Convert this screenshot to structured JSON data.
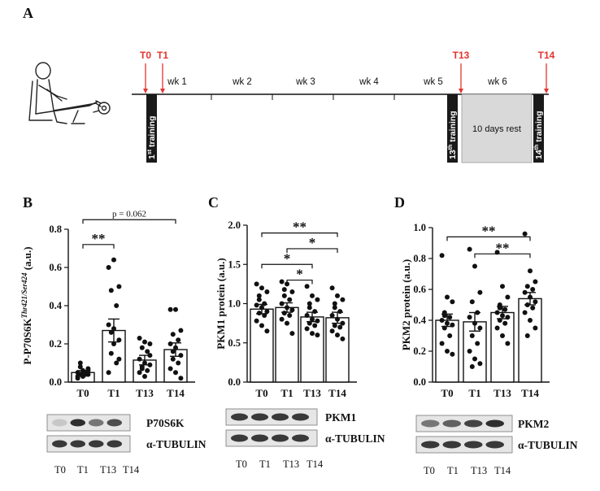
{
  "panel_labels": {
    "a": "A",
    "b": "B",
    "c": "C",
    "d": "D"
  },
  "timeline": {
    "markers": [
      {
        "label": "T0",
        "pos": 0
      },
      {
        "label": "T1",
        "pos": 1
      },
      {
        "label": "T13",
        "pos": 2
      },
      {
        "label": "T14",
        "pos": 3
      }
    ],
    "weeks": [
      "wk 1",
      "wk 2",
      "wk 3",
      "wk 4",
      "wk 5",
      "wk 6"
    ],
    "training_labels": [
      {
        "num": "1",
        "sup": "st",
        "word": " training"
      },
      {
        "num": "13",
        "sup": "th",
        "word": " training"
      },
      {
        "num": "14",
        "sup": "th",
        "word": " training"
      }
    ],
    "rest_label": "10 days rest",
    "colors": {
      "marker": "#e3342f",
      "rest_fill": "#d9d9d9",
      "training_fill": "#1a1a1a"
    }
  },
  "chart_data": [
    {
      "type": "bar",
      "panel": "B",
      "categories": [
        "T0",
        "T1",
        "T13",
        "T14"
      ],
      "values": [
        0.05,
        0.27,
        0.115,
        0.17
      ],
      "errors": [
        0.01,
        0.06,
        0.025,
        0.035
      ],
      "points": [
        [
          0.02,
          0.03,
          0.04,
          0.04,
          0.05,
          0.05,
          0.06,
          0.07,
          0.1,
          0.04,
          0.03,
          0.05,
          0.06,
          0.08
        ],
        [
          0.6,
          0.64,
          0.5,
          0.48,
          0.4,
          0.3,
          0.28,
          0.22,
          0.15,
          0.1,
          0.05,
          0.2,
          0.12,
          0.26
        ],
        [
          0.23,
          0.21,
          0.2,
          0.18,
          0.16,
          0.12,
          0.1,
          0.09,
          0.08,
          0.06,
          0.05,
          0.03,
          0.14,
          0.07
        ],
        [
          0.38,
          0.38,
          0.27,
          0.25,
          0.22,
          0.2,
          0.18,
          0.14,
          0.12,
          0.1,
          0.07,
          0.05,
          0.02,
          0.16
        ]
      ],
      "ylabel_main": "P-P70S6K",
      "ylabel_sup": "Thr421/Ser424",
      "ylabel_unit": " (a.u.)",
      "ylim": [
        0,
        0.8
      ],
      "yticks": [
        "0.0",
        "0.2",
        "0.4",
        "0.6",
        "0.8"
      ],
      "annotations": [
        {
          "from": 0,
          "to": 1,
          "label": "**",
          "level": 0.72
        },
        {
          "from": 0,
          "to": 3,
          "label": "p = 0.062",
          "level": 0.85
        }
      ],
      "blot_labels": [
        "P70S6K",
        "α-TUBULIN"
      ],
      "lane_labels": [
        "T0",
        "T1",
        "T13",
        "T14"
      ]
    },
    {
      "type": "bar",
      "panel": "C",
      "categories": [
        "T0",
        "T1",
        "T13",
        "T14"
      ],
      "values": [
        0.93,
        0.95,
        0.83,
        0.82
      ],
      "errors": [
        0.06,
        0.06,
        0.06,
        0.07
      ],
      "points": [
        [
          1.25,
          1.2,
          1.15,
          1.05,
          1.0,
          0.98,
          0.95,
          0.9,
          0.88,
          0.85,
          0.78,
          0.72,
          0.65,
          1.1
        ],
        [
          1.28,
          1.25,
          1.15,
          1.1,
          1.05,
          1.0,
          0.95,
          0.92,
          0.88,
          0.85,
          0.8,
          0.75,
          0.62,
          1.18
        ],
        [
          1.22,
          1.1,
          1.05,
          0.95,
          0.9,
          0.85,
          0.8,
          0.78,
          0.75,
          0.72,
          0.68,
          0.62,
          0.6,
          1.0
        ],
        [
          1.2,
          1.1,
          1.05,
          1.0,
          0.9,
          0.85,
          0.8,
          0.75,
          0.72,
          0.7,
          0.65,
          0.6,
          0.55,
          0.95
        ]
      ],
      "ylabel_main": "PKM1 protein",
      "ylabel_sup": "",
      "ylabel_unit": " (a.u.)",
      "ylim": [
        0,
        2.0
      ],
      "yticks": [
        "0.0",
        "0.5",
        "1.0",
        "1.5",
        "2.0"
      ],
      "annotations": [
        {
          "from": 0,
          "to": 3,
          "label": "**",
          "level": 1.9
        },
        {
          "from": 1,
          "to": 3,
          "label": "*",
          "level": 1.7
        },
        {
          "from": 0,
          "to": 2,
          "label": "*",
          "level": 1.5
        },
        {
          "from": 1,
          "to": 2,
          "label": "*",
          "level": 1.3
        }
      ],
      "blot_labels": [
        "PKM1",
        "α-TUBULIN"
      ],
      "lane_labels": [
        "T0",
        "T1",
        "T13",
        "T14"
      ]
    },
    {
      "type": "bar",
      "panel": "D",
      "categories": [
        "T0",
        "T1",
        "T13",
        "T14"
      ],
      "values": [
        0.4,
        0.39,
        0.45,
        0.54
      ],
      "errors": [
        0.04,
        0.06,
        0.04,
        0.04
      ],
      "points": [
        [
          0.82,
          0.55,
          0.52,
          0.45,
          0.42,
          0.4,
          0.38,
          0.37,
          0.35,
          0.3,
          0.25,
          0.2,
          0.18,
          0.43
        ],
        [
          0.86,
          0.75,
          0.58,
          0.52,
          0.45,
          0.42,
          0.38,
          0.35,
          0.3,
          0.25,
          0.2,
          0.15,
          0.12,
          0.1
        ],
        [
          0.84,
          0.62,
          0.55,
          0.5,
          0.47,
          0.45,
          0.43,
          0.42,
          0.4,
          0.38,
          0.35,
          0.3,
          0.25,
          0.48
        ],
        [
          0.96,
          0.72,
          0.65,
          0.62,
          0.6,
          0.58,
          0.55,
          0.52,
          0.5,
          0.48,
          0.45,
          0.4,
          0.35,
          0.3
        ]
      ],
      "ylabel_main": "PKM2 protein",
      "ylabel_sup": "",
      "ylabel_unit": " (a.u.)",
      "ylim": [
        0,
        1.0
      ],
      "yticks": [
        "0.0",
        "0.2",
        "0.4",
        "0.6",
        "0.8",
        "1.0"
      ],
      "annotations": [
        {
          "from": 0,
          "to": 3,
          "label": "**",
          "level": 0.94
        },
        {
          "from": 1,
          "to": 3,
          "label": "**",
          "level": 0.83
        }
      ],
      "blot_labels": [
        "PKM2",
        "α-TUBULIN"
      ],
      "lane_labels": [
        "T0",
        "T1",
        "T13",
        "T14"
      ]
    }
  ]
}
